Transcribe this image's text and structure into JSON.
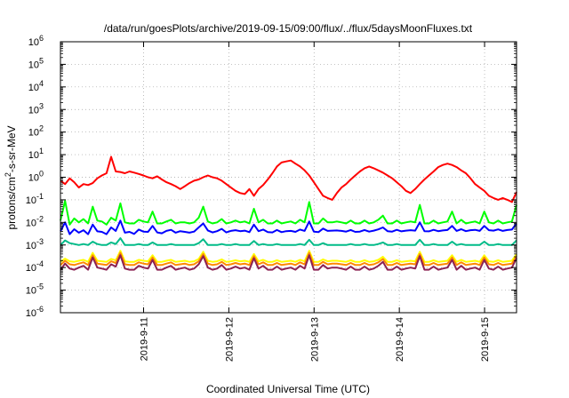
{
  "chart_data": {
    "type": "line",
    "title": "/data/run/goesPlots/archive/2019-09-15/09:00/flux/../flux/5daysMoonFluxes.txt",
    "xlabel": "Coordinated Universal Time (UTC)",
    "ylabel": "protons/cm²-s-sr-MeV",
    "y_scale": "log",
    "ylim": [
      1e-06,
      1000000.0
    ],
    "y_ticks": [
      {
        "base": "10",
        "exp": "6"
      },
      {
        "base": "10",
        "exp": "5"
      },
      {
        "base": "10",
        "exp": "4"
      },
      {
        "base": "10",
        "exp": "3"
      },
      {
        "base": "10",
        "exp": "2"
      },
      {
        "base": "10",
        "exp": "1"
      },
      {
        "base": "10",
        "exp": "0"
      },
      {
        "base": "10",
        "exp": "-1"
      },
      {
        "base": "10",
        "exp": "-2"
      },
      {
        "base": "10",
        "exp": "-3"
      },
      {
        "base": "10",
        "exp": "-4"
      },
      {
        "base": "10",
        "exp": "-5"
      },
      {
        "base": "10",
        "exp": "-6"
      }
    ],
    "xlim": [
      "2019-09-10 00:36",
      "2019-09-15 09:00"
    ],
    "x_ticks": [
      "2019-9-11",
      "2019-9-12",
      "2019-9-13",
      "2019-9-14",
      "2019-9-15"
    ],
    "grid": true,
    "series": [
      {
        "color": "#ff0000",
        "values": [
          0.7,
          0.5,
          0.9,
          0.6,
          0.35,
          0.5,
          0.45,
          0.55,
          0.9,
          1.2,
          1.5,
          8.0,
          1.8,
          1.7,
          1.5,
          1.8,
          1.6,
          1.4,
          1.2,
          1.0,
          0.9,
          1.1,
          0.8,
          0.6,
          0.5,
          0.4,
          0.3,
          0.4,
          0.55,
          0.7,
          0.8,
          1.0,
          1.2,
          1.0,
          0.9,
          0.7,
          0.5,
          0.35,
          0.25,
          0.2,
          0.18,
          0.3,
          0.15,
          0.3,
          0.45,
          0.8,
          1.5,
          3.0,
          4.5,
          5.0,
          5.5,
          4.0,
          3.0,
          2.0,
          1.2,
          0.6,
          0.3,
          0.15,
          0.12,
          0.1,
          0.2,
          0.35,
          0.5,
          0.8,
          1.2,
          1.8,
          2.5,
          3.0,
          2.5,
          2.0,
          1.6,
          1.2,
          0.9,
          0.6,
          0.4,
          0.25,
          0.2,
          0.3,
          0.5,
          0.8,
          1.2,
          1.8,
          2.8,
          3.5,
          4.0,
          3.5,
          2.8,
          2.0,
          1.5,
          0.9,
          0.5,
          0.35,
          0.25,
          0.15,
          0.12,
          0.1,
          0.12,
          0.1,
          0.08,
          0.22
        ]
      },
      {
        "color": "#00ff00",
        "values": [
          0.012,
          0.09,
          0.008,
          0.015,
          0.01,
          0.014,
          0.009,
          0.05,
          0.012,
          0.011,
          0.008,
          0.016,
          0.012,
          0.07,
          0.01,
          0.009,
          0.009,
          0.013,
          0.011,
          0.01,
          0.03,
          0.009,
          0.009,
          0.011,
          0.013,
          0.009,
          0.01,
          0.01,
          0.009,
          0.01,
          0.016,
          0.05,
          0.011,
          0.009,
          0.01,
          0.014,
          0.009,
          0.01,
          0.012,
          0.01,
          0.011,
          0.009,
          0.04,
          0.01,
          0.013,
          0.009,
          0.009,
          0.012,
          0.009,
          0.01,
          0.011,
          0.009,
          0.013,
          0.01,
          0.08,
          0.009,
          0.009,
          0.015,
          0.01,
          0.01,
          0.011,
          0.01,
          0.009,
          0.012,
          0.009,
          0.009,
          0.012,
          0.009,
          0.01,
          0.013,
          0.02,
          0.009,
          0.009,
          0.012,
          0.009,
          0.01,
          0.011,
          0.01,
          0.06,
          0.009,
          0.009,
          0.012,
          0.009,
          0.01,
          0.011,
          0.03,
          0.009,
          0.013,
          0.009,
          0.01,
          0.011,
          0.009,
          0.03,
          0.01,
          0.009,
          0.012,
          0.009,
          0.01,
          0.011,
          0.06
        ]
      },
      {
        "color": "#0000ff",
        "values": [
          0.004,
          0.01,
          0.003,
          0.005,
          0.0035,
          0.0045,
          0.003,
          0.008,
          0.004,
          0.0038,
          0.003,
          0.006,
          0.0042,
          0.012,
          0.0035,
          0.0038,
          0.0031,
          0.0048,
          0.0039,
          0.0038,
          0.007,
          0.0036,
          0.0033,
          0.0042,
          0.0047,
          0.0035,
          0.0041,
          0.0038,
          0.0035,
          0.0039,
          0.006,
          0.009,
          0.0044,
          0.0036,
          0.0041,
          0.0052,
          0.0036,
          0.0042,
          0.0045,
          0.0041,
          0.0043,
          0.0037,
          0.008,
          0.0041,
          0.0048,
          0.0037,
          0.0036,
          0.0046,
          0.0037,
          0.0041,
          0.0042,
          0.0038,
          0.0048,
          0.0042,
          0.011,
          0.0039,
          0.0037,
          0.0053,
          0.0042,
          0.0043,
          0.0044,
          0.0042,
          0.0039,
          0.0046,
          0.0038,
          0.0039,
          0.0046,
          0.0039,
          0.0043,
          0.0049,
          0.006,
          0.0041,
          0.0039,
          0.0047,
          0.004,
          0.0043,
          0.0045,
          0.0043,
          0.01,
          0.0041,
          0.004,
          0.0047,
          0.0041,
          0.0044,
          0.0046,
          0.007,
          0.0042,
          0.005,
          0.0041,
          0.0045,
          0.0047,
          0.0042,
          0.007,
          0.0045,
          0.0043,
          0.0049,
          0.0042,
          0.0046,
          0.0048,
          0.009
        ]
      },
      {
        "color": "#00bb88",
        "values": [
          0.001,
          0.0016,
          0.0012,
          0.0011,
          0.001,
          0.0011,
          0.001,
          0.0014,
          0.0011,
          0.001,
          0.001,
          0.0013,
          0.0011,
          0.002,
          0.001,
          0.001,
          0.001,
          0.0011,
          0.001,
          0.001,
          0.0013,
          0.001,
          0.001,
          0.001,
          0.0011,
          0.001,
          0.001,
          0.001,
          0.001,
          0.001,
          0.0012,
          0.0018,
          0.001,
          0.001,
          0.001,
          0.0011,
          0.001,
          0.001,
          0.0011,
          0.001,
          0.001,
          0.001,
          0.0015,
          0.001,
          0.0011,
          0.001,
          0.001,
          0.0011,
          0.001,
          0.001,
          0.001,
          0.001,
          0.0011,
          0.001,
          0.0017,
          0.001,
          0.001,
          0.0012,
          0.001,
          0.001,
          0.001,
          0.001,
          0.001,
          0.0011,
          0.001,
          0.001,
          0.0011,
          0.001,
          0.001,
          0.0011,
          0.0013,
          0.001,
          0.001,
          0.0011,
          0.001,
          0.001,
          0.001,
          0.001,
          0.0017,
          0.001,
          0.001,
          0.0011,
          0.001,
          0.001,
          0.001,
          0.0014,
          0.001,
          0.0011,
          0.001,
          0.001,
          0.001,
          0.001,
          0.0014,
          0.001,
          0.001,
          0.0011,
          0.001,
          0.001,
          0.001,
          0.0016
        ]
      },
      {
        "color": "#ffff00",
        "values": [
          0.00018,
          0.00025,
          0.00019,
          0.00018,
          0.0002,
          0.00022,
          0.00018,
          0.00045,
          0.0002,
          0.00019,
          0.00018,
          0.00024,
          0.00021,
          0.00055,
          0.00019,
          0.00018,
          0.00018,
          0.00022,
          0.0002,
          0.00019,
          0.00035,
          0.00018,
          0.00018,
          0.0002,
          0.00022,
          0.00018,
          0.00019,
          0.0002,
          0.00018,
          0.00019,
          0.00024,
          0.0005,
          0.0002,
          0.00018,
          0.00019,
          0.00023,
          0.00018,
          0.00019,
          0.00021,
          0.00019,
          0.0002,
          0.00018,
          0.0004,
          0.00019,
          0.00022,
          0.00018,
          0.00018,
          0.00021,
          0.00018,
          0.00019,
          0.0002,
          0.00018,
          0.00022,
          0.00019,
          0.00055,
          0.00018,
          0.00018,
          0.00023,
          0.00019,
          0.0002,
          0.0002,
          0.00019,
          0.00018,
          0.00021,
          0.00018,
          0.00018,
          0.00021,
          0.00018,
          0.00019,
          0.00022,
          0.0003,
          0.00018,
          0.00018,
          0.00021,
          0.00018,
          0.00019,
          0.0002,
          0.00019,
          0.0005,
          0.00018,
          0.00018,
          0.00021,
          0.00018,
          0.00019,
          0.0002,
          0.00035,
          0.00018,
          0.00022,
          0.00018,
          0.00019,
          0.0002,
          0.00018,
          0.00035,
          0.00019,
          0.00018,
          0.00021,
          0.00018,
          0.00019,
          0.0002,
          0.0004
        ]
      },
      {
        "color": "#ff8800",
        "values": [
          0.00013,
          0.0002,
          0.00014,
          0.00013,
          0.00015,
          0.00017,
          0.00013,
          0.00035,
          0.00015,
          0.00014,
          0.00013,
          0.00019,
          0.00016,
          0.00045,
          0.00014,
          0.00013,
          0.00013,
          0.00017,
          0.00015,
          0.00014,
          0.00028,
          0.00013,
          0.00013,
          0.00015,
          0.00017,
          0.00013,
          0.00014,
          0.00015,
          0.00013,
          0.00014,
          0.00019,
          0.0004,
          0.00015,
          0.00013,
          0.00014,
          0.00018,
          0.00013,
          0.00014,
          0.00016,
          0.00014,
          0.00015,
          0.00013,
          0.00032,
          0.00014,
          0.00017,
          0.00013,
          0.00013,
          0.00016,
          0.00013,
          0.00014,
          0.00015,
          0.00013,
          0.00017,
          0.00014,
          0.00045,
          0.00013,
          0.00013,
          0.00018,
          0.00014,
          0.00015,
          0.00015,
          0.00014,
          0.00013,
          0.00016,
          0.00013,
          0.00013,
          0.00016,
          0.00013,
          0.00014,
          0.00017,
          0.00024,
          0.00013,
          0.00013,
          0.00016,
          0.00013,
          0.00014,
          0.00015,
          0.00014,
          0.0004,
          0.00013,
          0.00013,
          0.00016,
          0.00013,
          0.00014,
          0.00015,
          0.00028,
          0.00013,
          0.00017,
          0.00013,
          0.00014,
          0.00015,
          0.00013,
          0.00028,
          0.00014,
          0.00013,
          0.00016,
          0.00013,
          0.00014,
          0.00015,
          0.00032
        ]
      },
      {
        "color": "#8b2252",
        "values": [
          8e-05,
          0.00015,
          9e-05,
          8e-05,
          0.0001,
          0.00012,
          8e-05,
          0.00028,
          0.0001,
          9e-05,
          8e-05,
          0.00014,
          0.00011,
          0.00035,
          9e-05,
          8e-05,
          8e-05,
          0.00012,
          0.0001,
          9e-05,
          0.00022,
          8e-05,
          8e-05,
          0.0001,
          0.00012,
          8e-05,
          9e-05,
          0.0001,
          8e-05,
          9e-05,
          0.00014,
          0.00032,
          0.0001,
          8e-05,
          9e-05,
          0.00013,
          8e-05,
          9e-05,
          0.00011,
          9e-05,
          0.0001,
          8e-05,
          0.00026,
          9e-05,
          0.00012,
          8e-05,
          8e-05,
          0.00011,
          8e-05,
          9e-05,
          0.0001,
          8e-05,
          0.00012,
          9e-05,
          0.00035,
          8e-05,
          8e-05,
          0.00013,
          9e-05,
          0.0001,
          0.0001,
          9e-05,
          8e-05,
          0.00011,
          8e-05,
          8e-05,
          0.00011,
          8e-05,
          9e-05,
          0.00012,
          0.00018,
          8e-05,
          8e-05,
          0.00011,
          8e-05,
          9e-05,
          0.0001,
          9e-05,
          0.00032,
          8e-05,
          8e-05,
          0.00011,
          8e-05,
          9e-05,
          0.0001,
          0.00022,
          8e-05,
          0.00012,
          8e-05,
          9e-05,
          0.0001,
          8e-05,
          0.00022,
          9e-05,
          8e-05,
          0.00011,
          8e-05,
          9e-05,
          0.0001,
          0.00026
        ]
      }
    ]
  }
}
